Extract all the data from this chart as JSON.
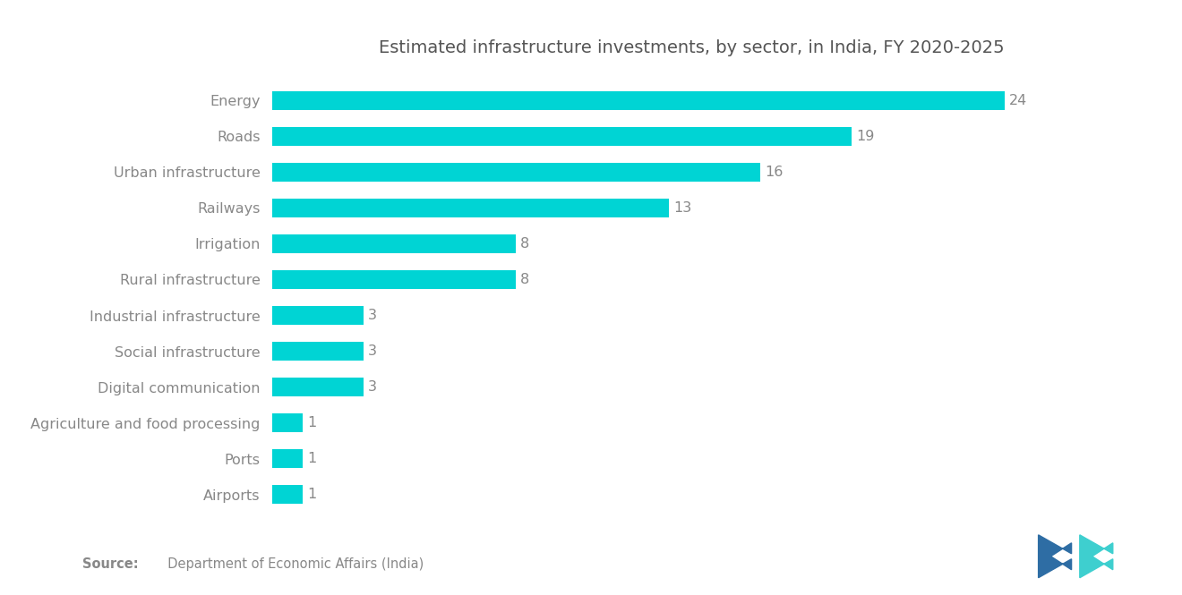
{
  "title": "Estimated infrastructure investments, by sector, in India, FY 2020-2025",
  "categories": [
    "Airports",
    "Ports",
    "Agriculture and food processing",
    "Digital communication",
    "Social infrastructure",
    "Industrial infrastructure",
    "Rural infrastructure",
    "Irrigation",
    "Railways",
    "Urban infrastructure",
    "Roads",
    "Energy"
  ],
  "values": [
    1,
    1,
    1,
    3,
    3,
    3,
    8,
    8,
    13,
    16,
    19,
    24
  ],
  "bar_color": "#00D4D4",
  "label_color": "#888888",
  "value_color": "#888888",
  "title_color": "#555555",
  "background_color": "#ffffff",
  "title_fontsize": 14,
  "label_fontsize": 11.5,
  "value_fontsize": 11.5,
  "source_fontsize": 10.5,
  "logo_color_left": "#2e6da4",
  "logo_color_right": "#3ecfcf"
}
